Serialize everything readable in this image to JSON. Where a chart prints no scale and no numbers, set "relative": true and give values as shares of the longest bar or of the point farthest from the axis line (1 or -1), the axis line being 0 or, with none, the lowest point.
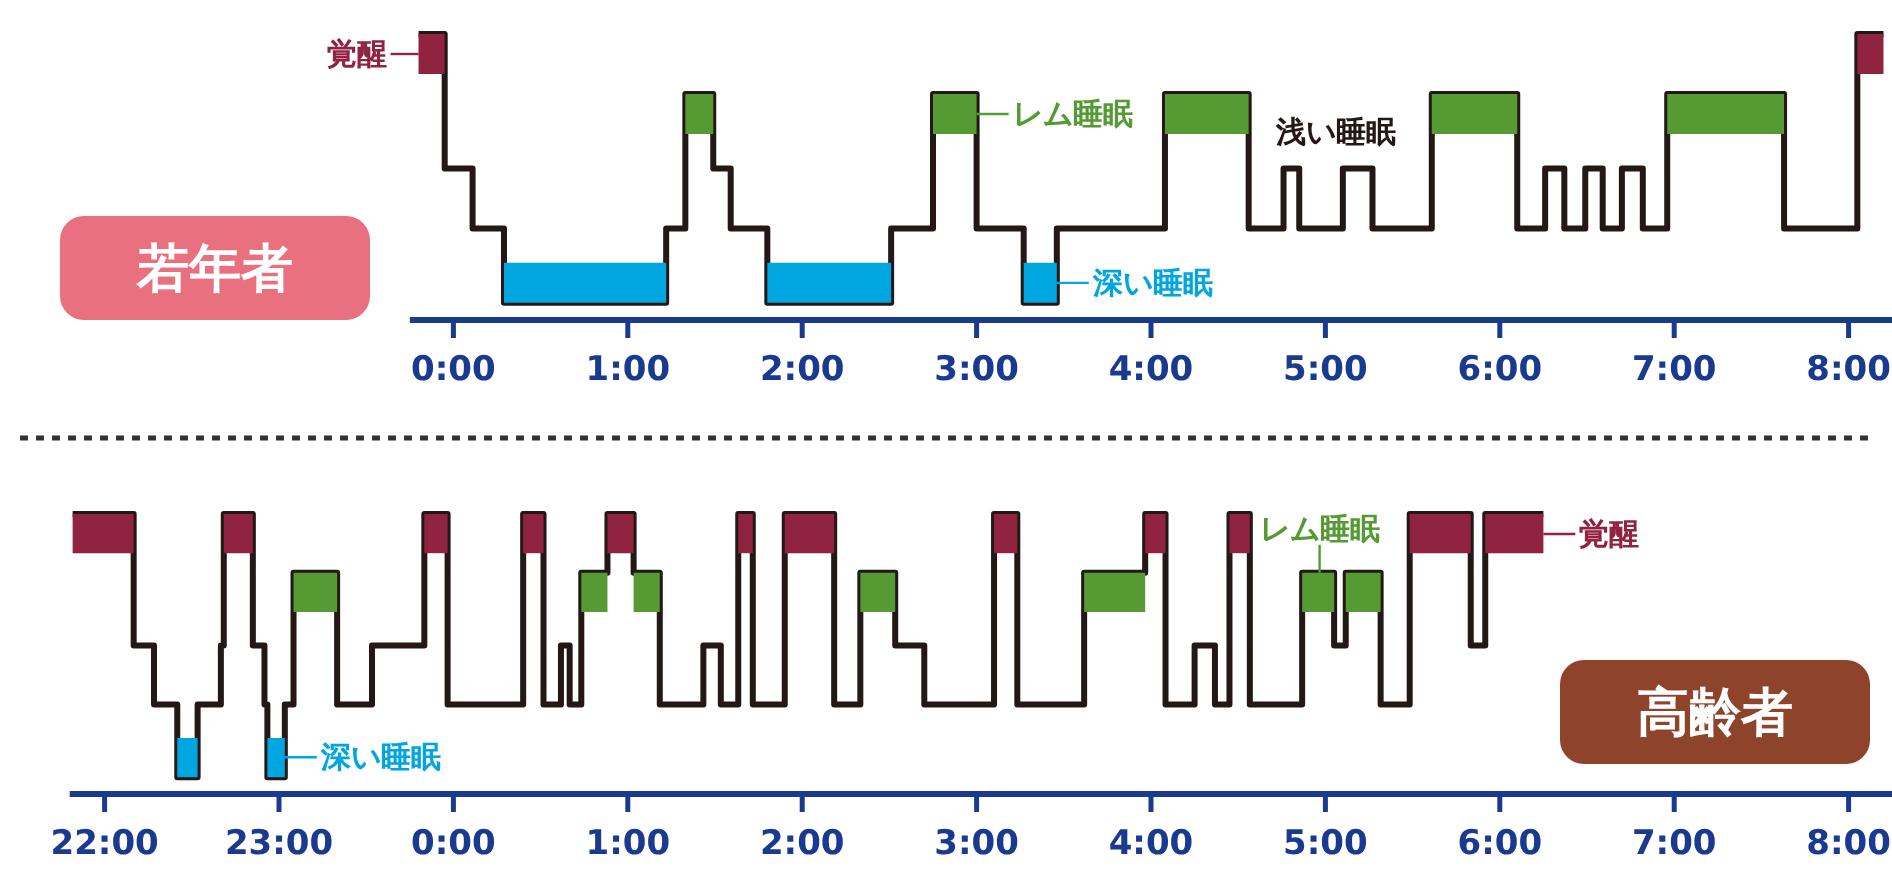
{
  "chart_data": [
    {
      "type": "step",
      "title": "若年者",
      "relative": true,
      "xlim": [
        -0.25,
        8.25
      ],
      "xticks": [
        {
          "value": 0,
          "label": "0:00"
        },
        {
          "value": 1,
          "label": "1:00"
        },
        {
          "value": 2,
          "label": "2:00"
        },
        {
          "value": 3,
          "label": "3:00"
        },
        {
          "value": 4,
          "label": "4:00"
        },
        {
          "value": 5,
          "label": "5:00"
        },
        {
          "value": 6,
          "label": "6:00"
        },
        {
          "value": 7,
          "label": "7:00"
        },
        {
          "value": 8,
          "label": "8:00"
        }
      ],
      "series": [
        {
          "color": "#231815",
          "x": [
            -0.2,
            -0.05,
            0.11,
            0.29,
            1.22,
            1.33,
            1.49,
            1.59,
            1.8,
            2.51,
            2.75,
            3.0,
            3.27,
            3.46,
            4.08,
            4.56,
            4.76,
            4.85,
            5.1,
            5.27,
            5.61,
            6.1,
            6.26,
            6.37,
            6.49,
            6.59,
            6.7,
            6.82,
            6.96,
            7.63,
            8.05,
            8.2
          ],
          "values": [
            1,
            0.53,
            0.32,
            0.06,
            0.32,
            0.79,
            0.53,
            0.32,
            0.06,
            0.32,
            0.79,
            0.32,
            0.06,
            0.32,
            0.79,
            0.32,
            0.53,
            0.32,
            0.53,
            0.32,
            0.79,
            0.32,
            0.53,
            0.32,
            0.53,
            0.32,
            0.53,
            0.32,
            0.79,
            0.32,
            1,
            1
          ]
        },
        {
          "type": "line",
          "color": "#8f2340",
          "x": [
            -0.2,
            -0.05
          ],
          "values": [
            0.93,
            0.93
          ]
        },
        {
          "type": "line",
          "color": "#8f2340",
          "x": [
            8.05,
            8.2
          ],
          "values": [
            0.93,
            0.93
          ]
        },
        {
          "type": "line",
          "color": "#559a33",
          "x": [
            1.33,
            1.49
          ],
          "values": [
            0.72,
            0.72
          ]
        },
        {
          "type": "line",
          "color": "#559a33",
          "x": [
            2.75,
            3.0
          ],
          "values": [
            0.72,
            0.72
          ]
        },
        {
          "type": "line",
          "color": "#559a33",
          "x": [
            4.08,
            4.56
          ],
          "values": [
            0.72,
            0.72
          ]
        },
        {
          "type": "line",
          "color": "#559a33",
          "x": [
            5.61,
            6.1
          ],
          "values": [
            0.72,
            0.72
          ]
        },
        {
          "type": "line",
          "color": "#559a33",
          "x": [
            6.96,
            7.63
          ],
          "values": [
            0.72,
            0.72
          ]
        },
        {
          "type": "line",
          "color": "#00a6e0",
          "x": [
            0.29,
            1.22
          ],
          "values": [
            0.13,
            0.13
          ]
        },
        {
          "type": "line",
          "color": "#00a6e0",
          "x": [
            1.8,
            2.51
          ],
          "values": [
            0.13,
            0.13
          ]
        },
        {
          "type": "line",
          "color": "#00a6e0",
          "x": [
            3.27,
            3.46
          ],
          "values": [
            0.13,
            0.13
          ]
        }
      ],
      "annotations": [
        {
          "text": "覚醒",
          "x": -0.12,
          "y": 1
        },
        {
          "text": "レム睡眠",
          "x": 2.9,
          "y": 0.79
        },
        {
          "text": "深い睡眠",
          "x": 3.36,
          "y": 0.06
        },
        {
          "text": "浅い睡眠",
          "x": 5.06,
          "y": 0.53
        }
      ]
    },
    {
      "type": "step",
      "title": "高齢者",
      "relative": true,
      "xlim": [
        "2000-01-01T21:48",
        "2000-01-02T08:15"
      ],
      "xticks": [
        {
          "value": "2000-01-01T22:00",
          "label": "22:00"
        },
        {
          "value": "2000-01-01T23:00",
          "label": "23:00"
        },
        {
          "value": "2000-01-02T00:00",
          "label": "0:00"
        },
        {
          "value": "2000-01-02T01:00",
          "label": "1:00"
        },
        {
          "value": "2000-01-02T02:00",
          "label": "2:00"
        },
        {
          "value": "2000-01-02T03:00",
          "label": "3:00"
        },
        {
          "value": "2000-01-02T04:00",
          "label": "4:00"
        },
        {
          "value": "2000-01-02T05:00",
          "label": "5:00"
        },
        {
          "value": "2000-01-02T06:00",
          "label": "6:00"
        },
        {
          "value": "2000-01-02T07:00",
          "label": "7:00"
        },
        {
          "value": "2000-01-02T08:00",
          "label": "8:00"
        }
      ],
      "series": [
        {
          "color": "#231815",
          "x": [
            "2000-01-01T21:49",
            "2000-01-01T22:10",
            "2000-01-01T22:17",
            "2000-01-01T22:25",
            "2000-01-01T22:32",
            "2000-01-01T22:40",
            "2000-01-01T22:41",
            "2000-01-01T22:51",
            "2000-01-01T22:55",
            "2000-01-01T22:56",
            "2000-01-01T23:02",
            "2000-01-01T23:05",
            "2000-01-01T23:20",
            "2000-01-01T23:32",
            "2000-01-01T23:50",
            "2000-01-01T23:58",
            "2000-01-02T00:24",
            "2000-01-02T00:31",
            "2000-01-02T00:37",
            "2000-01-02T00:40",
            "2000-01-02T00:44",
            "2000-01-02T00:53",
            "2000-01-02T01:02",
            "2000-01-02T01:11",
            "2000-01-02T01:26",
            "2000-01-02T01:32",
            "2000-01-02T01:38",
            "2000-01-02T01:43",
            "2000-01-02T01:54",
            "2000-01-02T02:11",
            "2000-01-02T02:20",
            "2000-01-02T02:32",
            "2000-01-02T02:42",
            "2000-01-02T03:06",
            "2000-01-02T03:14",
            "2000-01-02T03:37",
            "2000-01-02T03:58",
            "2000-01-02T04:05",
            "2000-01-02T04:15",
            "2000-01-02T04:22",
            "2000-01-02T04:27",
            "2000-01-02T04:34",
            "2000-01-02T04:52",
            "2000-01-02T05:03",
            "2000-01-02T05:07",
            "2000-01-02T05:19",
            "2000-01-02T05:29",
            "2000-01-02T05:50",
            "2000-01-02T05:55",
            "2000-01-02T06:15"
          ],
          "values": [
            1,
            0.53,
            0.32,
            0.06,
            0.32,
            0.53,
            1,
            0.53,
            0.32,
            0.06,
            0.32,
            0.79,
            0.32,
            0.53,
            1,
            0.32,
            1,
            0.32,
            0.53,
            0.32,
            0.79,
            1,
            0.79,
            0.32,
            0.53,
            0.32,
            1,
            0.32,
            1,
            0.32,
            0.79,
            0.53,
            0.32,
            1,
            0.32,
            0.79,
            1,
            0.32,
            0.53,
            0.32,
            1,
            0.32,
            0.79,
            0.53,
            0.79,
            0.32,
            1,
            0.53,
            1,
            1
          ]
        },
        {
          "type": "line",
          "color": "#8f2340",
          "x": [
            "2000-01-01T21:49",
            "2000-01-01T22:10"
          ],
          "values": [
            0.93,
            0.93
          ]
        },
        {
          "type": "line",
          "color": "#8f2340",
          "x": [
            "2000-01-01T22:41",
            "2000-01-01T22:51"
          ],
          "values": [
            0.93,
            0.93
          ]
        },
        {
          "type": "line",
          "color": "#8f2340",
          "x": [
            "2000-01-01T23:50",
            "2000-01-01T23:58"
          ],
          "values": [
            0.93,
            0.93
          ]
        },
        {
          "type": "line",
          "color": "#8f2340",
          "x": [
            "2000-01-02T00:24",
            "2000-01-02T00:31"
          ],
          "values": [
            0.93,
            0.93
          ]
        },
        {
          "type": "line",
          "color": "#8f2340",
          "x": [
            "2000-01-02T00:53",
            "2000-01-02T01:02"
          ],
          "values": [
            0.93,
            0.93
          ]
        },
        {
          "type": "line",
          "color": "#8f2340",
          "x": [
            "2000-01-02T01:38",
            "2000-01-02T01:43"
          ],
          "values": [
            0.93,
            0.93
          ]
        },
        {
          "type": "line",
          "color": "#8f2340",
          "x": [
            "2000-01-02T01:54",
            "2000-01-02T02:11"
          ],
          "values": [
            0.93,
            0.93
          ]
        },
        {
          "type": "line",
          "color": "#8f2340",
          "x": [
            "2000-01-02T03:06",
            "2000-01-02T03:14"
          ],
          "values": [
            0.93,
            0.93
          ]
        },
        {
          "type": "line",
          "color": "#8f2340",
          "x": [
            "2000-01-02T03:58",
            "2000-01-02T04:05"
          ],
          "values": [
            0.93,
            0.93
          ]
        },
        {
          "type": "line",
          "color": "#8f2340",
          "x": [
            "2000-01-02T04:27",
            "2000-01-02T04:34"
          ],
          "values": [
            0.93,
            0.93
          ]
        },
        {
          "type": "line",
          "color": "#8f2340",
          "x": [
            "2000-01-02T05:29",
            "2000-01-02T05:50"
          ],
          "values": [
            0.93,
            0.93
          ]
        },
        {
          "type": "line",
          "color": "#8f2340",
          "x": [
            "2000-01-02T05:55",
            "2000-01-02T06:15"
          ],
          "values": [
            0.93,
            0.93
          ]
        },
        {
          "type": "line",
          "color": "#559a33",
          "x": [
            "2000-01-01T23:05",
            "2000-01-01T23:20"
          ],
          "values": [
            0.72,
            0.72
          ]
        },
        {
          "type": "line",
          "color": "#559a33",
          "x": [
            "2000-01-02T00:44",
            "2000-01-02T00:53"
          ],
          "values": [
            0.72,
            0.72
          ]
        },
        {
          "type": "line",
          "color": "#559a33",
          "x": [
            "2000-01-02T01:02",
            "2000-01-02T01:11"
          ],
          "values": [
            0.72,
            0.72
          ]
        },
        {
          "type": "line",
          "color": "#559a33",
          "x": [
            "2000-01-02T02:20",
            "2000-01-02T02:32"
          ],
          "values": [
            0.72,
            0.72
          ]
        },
        {
          "type": "line",
          "color": "#559a33",
          "x": [
            "2000-01-02T03:37",
            "2000-01-02T03:58"
          ],
          "values": [
            0.72,
            0.72
          ]
        },
        {
          "type": "line",
          "color": "#559a33",
          "x": [
            "2000-01-02T04:52",
            "2000-01-02T05:03"
          ],
          "values": [
            0.72,
            0.72
          ]
        },
        {
          "type": "line",
          "color": "#559a33",
          "x": [
            "2000-01-02T05:07",
            "2000-01-02T05:19"
          ],
          "values": [
            0.72,
            0.72
          ]
        },
        {
          "type": "line",
          "color": "#00a6e0",
          "x": [
            "2000-01-01T22:25",
            "2000-01-01T22:32"
          ],
          "values": [
            0.13,
            0.13
          ]
        },
        {
          "type": "line",
          "color": "#00a6e0",
          "x": [
            "2000-01-01T22:56",
            "2000-01-01T23:02"
          ],
          "values": [
            0.13,
            0.13
          ]
        }
      ],
      "annotations": [
        {
          "text": "深い睡眠",
          "x": "2000-01-01T22:59",
          "y": 0.06
        },
        {
          "text": "レム睡眠",
          "x": "2000-01-02T04:58",
          "y": 0.79
        },
        {
          "text": "覚醒",
          "x": "2000-01-02T06:06",
          "y": 1
        }
      ]
    }
  ]
}
